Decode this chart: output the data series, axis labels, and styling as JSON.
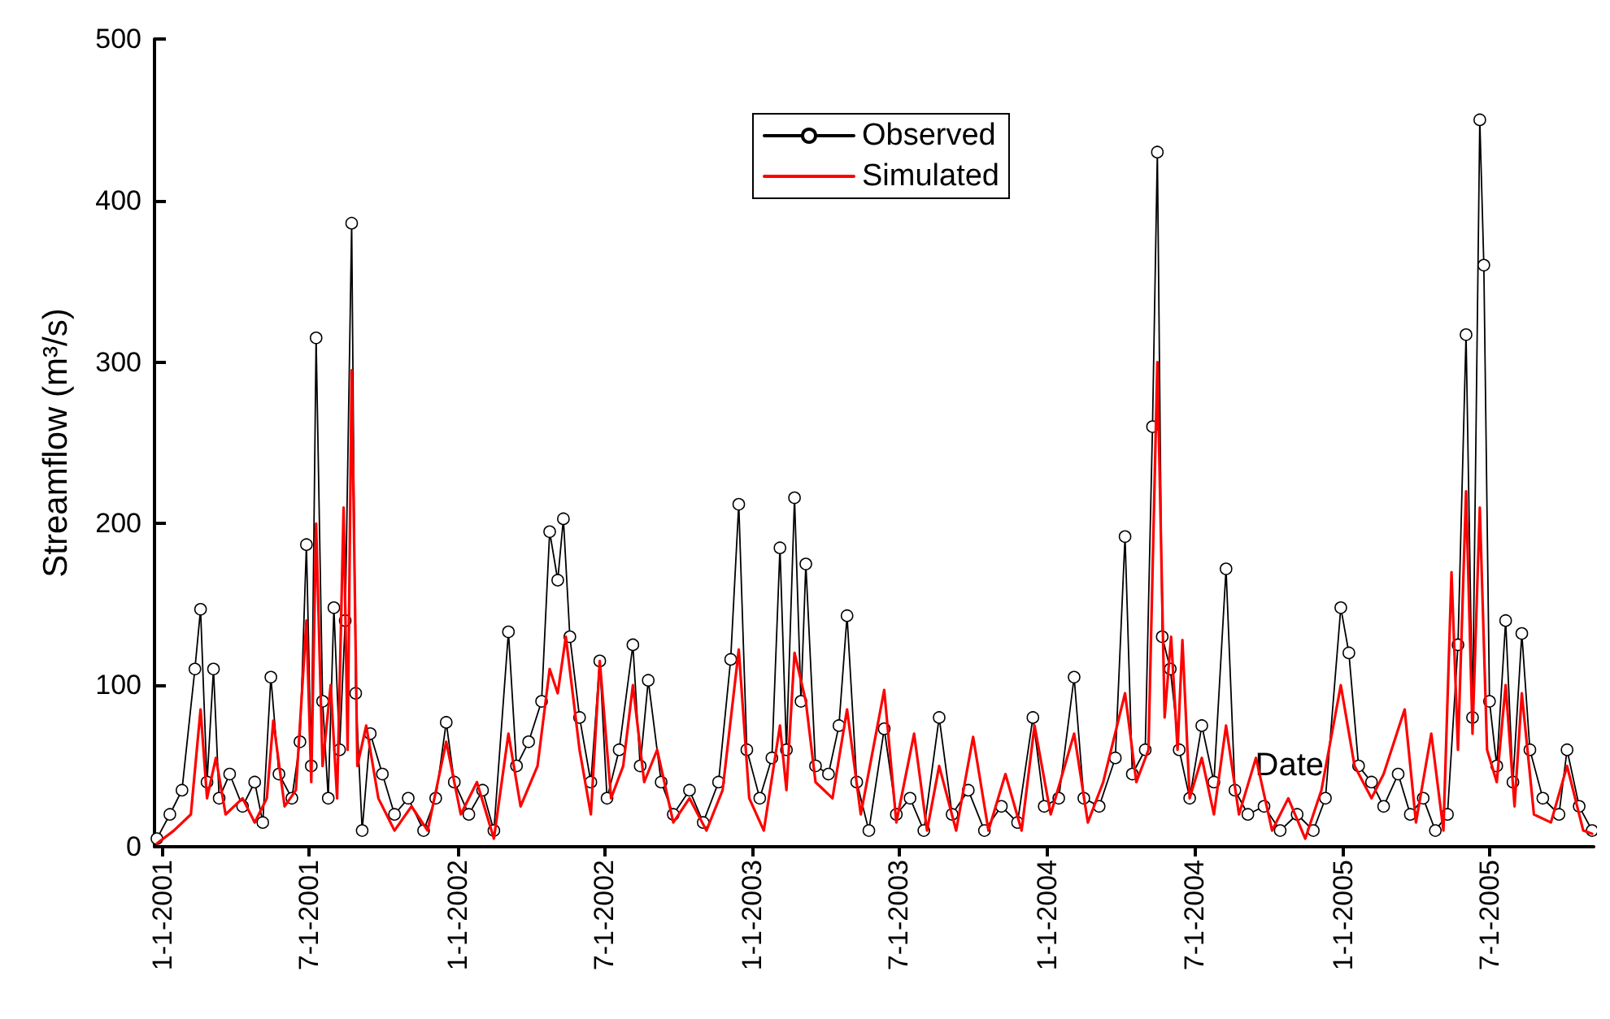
{
  "chart_data": {
    "type": "line",
    "xlabel": "Date",
    "ylabel": "Streamflow (m³/s)",
    "xlim": [
      "2000-12-22",
      "2005-11-07"
    ],
    "xticks": [
      {
        "value": "2001-01-01",
        "label": "1-1-2001"
      },
      {
        "value": "2001-07-01",
        "label": "7-1-2001"
      },
      {
        "value": "2002-01-01",
        "label": "1-1-2002"
      },
      {
        "value": "2002-07-01",
        "label": "7-1-2002"
      },
      {
        "value": "2003-01-01",
        "label": "1-1-2003"
      },
      {
        "value": "2003-07-01",
        "label": "7-1-2003"
      },
      {
        "value": "2004-01-01",
        "label": "1-1-2004"
      },
      {
        "value": "2004-07-01",
        "label": "7-1-2004"
      },
      {
        "value": "2005-01-01",
        "label": "1-1-2005"
      },
      {
        "value": "2005-07-01",
        "label": "7-1-2005"
      }
    ],
    "ylim": [
      0,
      500
    ],
    "yticks": [
      0,
      100,
      200,
      300,
      400,
      500
    ],
    "grid": false,
    "legend": "top",
    "line_style": "solid",
    "series": [
      {
        "name": "Observed",
        "color": "#000000",
        "marker": "circle",
        "x": [
          "2000-12-25",
          "2001-01-10",
          "2001-01-25",
          "2001-02-10",
          "2001-02-17",
          "2001-02-25",
          "2001-03-05",
          "2001-03-12",
          "2001-03-25",
          "2001-04-10",
          "2001-04-25",
          "2001-05-05",
          "2001-05-15",
          "2001-05-25",
          "2001-06-10",
          "2001-06-20",
          "2001-06-28",
          "2001-07-04",
          "2001-07-10",
          "2001-07-18",
          "2001-07-25",
          "2001-08-01",
          "2001-08-08",
          "2001-08-15",
          "2001-08-23",
          "2001-08-28",
          "2001-09-05",
          "2001-09-15",
          "2001-09-30",
          "2001-10-15",
          "2001-11-01",
          "2001-11-20",
          "2001-12-05",
          "2001-12-18",
          "2001-12-28",
          "2002-01-15",
          "2002-02-01",
          "2002-02-15",
          "2002-03-05",
          "2002-03-15",
          "2002-03-30",
          "2002-04-15",
          "2002-04-25",
          "2002-05-05",
          "2002-05-12",
          "2002-05-20",
          "2002-06-01",
          "2002-06-15",
          "2002-06-26",
          "2002-07-05",
          "2002-07-20",
          "2002-08-06",
          "2002-08-15",
          "2002-08-25",
          "2002-09-10",
          "2002-09-25",
          "2002-10-15",
          "2002-11-01",
          "2002-11-20",
          "2002-12-05",
          "2002-12-15",
          "2002-12-25",
          "2003-01-10",
          "2003-01-25",
          "2003-02-04",
          "2003-02-12",
          "2003-02-22",
          "2003-03-02",
          "2003-03-08",
          "2003-03-20",
          "2003-04-05",
          "2003-04-18",
          "2003-04-28",
          "2003-05-10",
          "2003-05-25",
          "2003-06-13",
          "2003-06-28",
          "2003-07-15",
          "2003-08-01",
          "2003-08-20",
          "2003-09-05",
          "2003-09-25",
          "2003-10-15",
          "2003-11-05",
          "2003-11-25",
          "2003-12-14",
          "2003-12-28",
          "2004-01-15",
          "2004-02-03",
          "2004-02-15",
          "2004-03-05",
          "2004-03-25",
          "2004-04-06",
          "2004-04-15",
          "2004-05-01",
          "2004-05-10",
          "2004-05-16",
          "2004-05-22",
          "2004-06-01",
          "2004-06-12",
          "2004-06-25",
          "2004-07-10",
          "2004-07-25",
          "2004-08-09",
          "2004-08-20",
          "2004-09-05",
          "2004-09-25",
          "2004-10-15",
          "2004-11-05",
          "2004-11-25",
          "2004-12-10",
          "2004-12-29",
          "2005-01-08",
          "2005-01-20",
          "2005-02-05",
          "2005-02-20",
          "2005-03-10",
          "2005-03-25",
          "2005-04-10",
          "2005-04-25",
          "2005-05-10",
          "2005-05-23",
          "2005-06-02",
          "2005-06-10",
          "2005-06-19",
          "2005-06-24",
          "2005-07-01",
          "2005-07-10",
          "2005-07-21",
          "2005-07-30",
          "2005-08-10",
          "2005-08-20",
          "2005-09-05",
          "2005-09-25",
          "2005-10-05",
          "2005-10-20",
          "2005-11-05"
        ],
        "values": [
          5,
          20,
          35,
          110,
          147,
          40,
          110,
          30,
          45,
          25,
          40,
          15,
          105,
          45,
          30,
          65,
          187,
          50,
          315,
          90,
          30,
          148,
          60,
          140,
          386,
          95,
          10,
          70,
          45,
          20,
          30,
          10,
          30,
          77,
          40,
          20,
          35,
          10,
          133,
          50,
          65,
          90,
          195,
          165,
          203,
          130,
          80,
          40,
          115,
          30,
          60,
          125,
          50,
          103,
          40,
          20,
          35,
          15,
          40,
          116,
          212,
          60,
          30,
          55,
          185,
          60,
          216,
          90,
          175,
          50,
          45,
          75,
          143,
          40,
          10,
          73,
          20,
          30,
          10,
          80,
          20,
          35,
          10,
          25,
          15,
          80,
          25,
          30,
          105,
          30,
          25,
          55,
          192,
          45,
          60,
          260,
          430,
          130,
          110,
          60,
          30,
          75,
          40,
          172,
          35,
          20,
          25,
          10,
          20,
          10,
          30,
          148,
          120,
          50,
          40,
          25,
          45,
          20,
          30,
          10,
          20,
          125,
          317,
          80,
          450,
          360,
          90,
          50,
          140,
          40,
          132,
          60,
          30,
          20,
          60,
          25,
          10
        ]
      },
      {
        "name": "Simulated",
        "color": "#ff0000",
        "marker": "none",
        "x": [
          "2000-12-25",
          "2001-01-15",
          "2001-02-05",
          "2001-02-17",
          "2001-02-25",
          "2001-03-08",
          "2001-03-20",
          "2001-04-10",
          "2001-04-25",
          "2001-05-10",
          "2001-05-18",
          "2001-06-01",
          "2001-06-15",
          "2001-06-28",
          "2001-07-04",
          "2001-07-10",
          "2001-07-18",
          "2001-07-28",
          "2001-08-05",
          "2001-08-13",
          "2001-08-18",
          "2001-08-23",
          "2001-08-30",
          "2001-09-10",
          "2001-09-25",
          "2001-10-15",
          "2001-11-05",
          "2001-11-25",
          "2001-12-18",
          "2002-01-05",
          "2002-01-25",
          "2002-02-15",
          "2002-03-05",
          "2002-03-20",
          "2002-04-10",
          "2002-04-25",
          "2002-05-05",
          "2002-05-15",
          "2002-06-01",
          "2002-06-15",
          "2002-06-26",
          "2002-07-10",
          "2002-07-25",
          "2002-08-06",
          "2002-08-20",
          "2002-09-05",
          "2002-09-25",
          "2002-10-15",
          "2002-11-05",
          "2002-11-25",
          "2002-12-15",
          "2002-12-28",
          "2003-01-15",
          "2003-02-04",
          "2003-02-12",
          "2003-02-22",
          "2003-03-08",
          "2003-03-20",
          "2003-04-10",
          "2003-04-28",
          "2003-05-15",
          "2003-06-13",
          "2003-06-28",
          "2003-07-20",
          "2003-08-05",
          "2003-08-20",
          "2003-09-10",
          "2003-10-01",
          "2003-10-20",
          "2003-11-10",
          "2003-11-30",
          "2003-12-16",
          "2004-01-05",
          "2004-02-03",
          "2004-02-20",
          "2004-03-10",
          "2004-04-06",
          "2004-04-20",
          "2004-05-05",
          "2004-05-16",
          "2004-05-25",
          "2004-06-02",
          "2004-06-10",
          "2004-06-16",
          "2004-06-25",
          "2004-07-10",
          "2004-07-25",
          "2004-08-09",
          "2004-08-25",
          "2004-09-15",
          "2004-10-05",
          "2004-10-25",
          "2004-11-15",
          "2004-12-05",
          "2004-12-29",
          "2005-01-15",
          "2005-02-05",
          "2005-02-20",
          "2005-03-18",
          "2005-04-01",
          "2005-04-20",
          "2005-05-05",
          "2005-05-15",
          "2005-05-23",
          "2005-06-02",
          "2005-06-10",
          "2005-06-19",
          "2005-06-28",
          "2005-07-10",
          "2005-07-21",
          "2005-08-01",
          "2005-08-10",
          "2005-08-25",
          "2005-09-15",
          "2005-10-05",
          "2005-10-25",
          "2005-11-05"
        ],
        "values": [
          2,
          10,
          20,
          85,
          30,
          55,
          20,
          30,
          15,
          30,
          78,
          25,
          35,
          140,
          40,
          200,
          50,
          100,
          30,
          210,
          60,
          295,
          50,
          75,
          30,
          10,
          25,
          10,
          65,
          20,
          40,
          5,
          70,
          25,
          50,
          110,
          95,
          130,
          60,
          20,
          115,
          30,
          50,
          100,
          40,
          60,
          15,
          30,
          10,
          35,
          122,
          30,
          10,
          75,
          35,
          120,
          90,
          40,
          30,
          85,
          20,
          97,
          15,
          70,
          10,
          50,
          10,
          68,
          10,
          45,
          10,
          75,
          20,
          70,
          15,
          40,
          95,
          40,
          60,
          300,
          80,
          130,
          60,
          128,
          30,
          55,
          20,
          75,
          20,
          55,
          10,
          30,
          5,
          35,
          100,
          50,
          30,
          45,
          85,
          15,
          70,
          10,
          170,
          60,
          220,
          70,
          210,
          60,
          40,
          100,
          25,
          95,
          20,
          15,
          50,
          10,
          8
        ]
      }
    ]
  }
}
